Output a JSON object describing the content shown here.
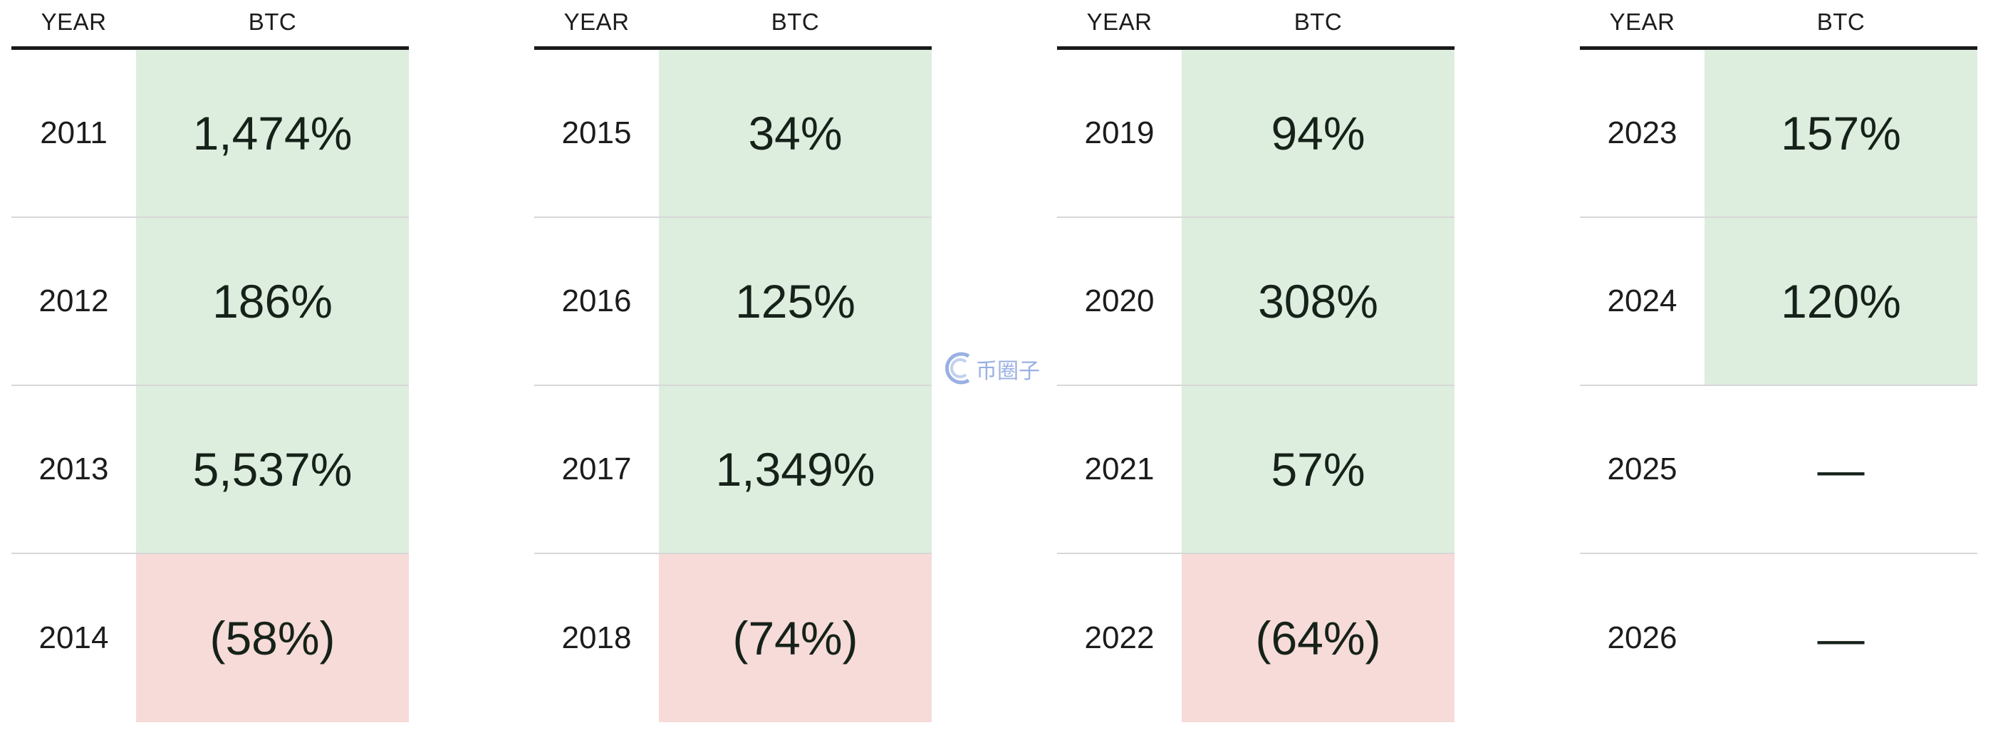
{
  "chart_data": {
    "type": "table",
    "headers": {
      "year": "YEAR",
      "btc": "BTC"
    },
    "panels": [
      [
        {
          "year": "2011",
          "text": "1,474%",
          "value": 1474,
          "sign": "pos"
        },
        {
          "year": "2012",
          "text": "186%",
          "value": 186,
          "sign": "pos"
        },
        {
          "year": "2013",
          "text": "5,537%",
          "value": 5537,
          "sign": "pos"
        },
        {
          "year": "2014",
          "text": "(58%)",
          "value": -58,
          "sign": "neg"
        }
      ],
      [
        {
          "year": "2015",
          "text": "34%",
          "value": 34,
          "sign": "pos"
        },
        {
          "year": "2016",
          "text": "125%",
          "value": 125,
          "sign": "pos"
        },
        {
          "year": "2017",
          "text": "1,349%",
          "value": 1349,
          "sign": "pos"
        },
        {
          "year": "2018",
          "text": "(74%)",
          "value": -74,
          "sign": "neg"
        }
      ],
      [
        {
          "year": "2019",
          "text": "94%",
          "value": 94,
          "sign": "pos"
        },
        {
          "year": "2020",
          "text": "308%",
          "value": 308,
          "sign": "pos"
        },
        {
          "year": "2021",
          "text": "57%",
          "value": 57,
          "sign": "pos"
        },
        {
          "year": "2022",
          "text": "(64%)",
          "value": -64,
          "sign": "neg"
        }
      ],
      [
        {
          "year": "2023",
          "text": "157%",
          "value": 157,
          "sign": "pos"
        },
        {
          "year": "2024",
          "text": "120%",
          "value": 120,
          "sign": "pos"
        },
        {
          "year": "2025",
          "text": "—",
          "value": null,
          "sign": "none"
        },
        {
          "year": "2026",
          "text": "—",
          "value": null,
          "sign": "none"
        }
      ]
    ],
    "colors": {
      "positive": "#ddeedf",
      "negative": "#f6dbd8"
    }
  },
  "watermark": {
    "text": "币圈子",
    "icon": "watermark-logo-icon"
  }
}
